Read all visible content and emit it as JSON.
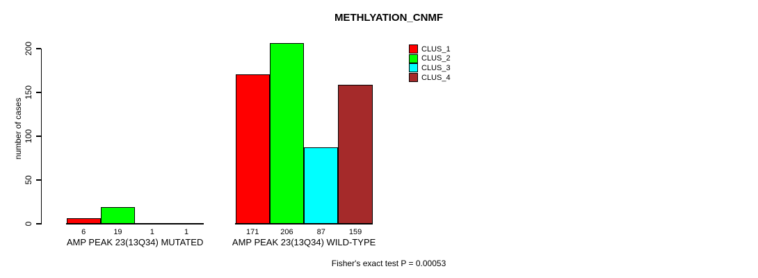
{
  "chart_data": {
    "type": "bar",
    "title": "METHLYATION_CNMF",
    "ylabel": "number of cases",
    "xlabel": "",
    "ylim": [
      0,
      200
    ],
    "yticks": [
      0,
      50,
      100,
      150,
      200
    ],
    "grid": false,
    "legend_position": "top-right-outside",
    "categories": [
      "AMP PEAK 23(13Q34) MUTATED",
      "AMP PEAK 23(13Q34) WILD-TYPE"
    ],
    "series": [
      {
        "name": "CLUS_1",
        "color": "#ff0000",
        "values": [
          6,
          171
        ]
      },
      {
        "name": "CLUS_2",
        "color": "#00ff00",
        "values": [
          19,
          206
        ]
      },
      {
        "name": "CLUS_3",
        "color": "#00ffff",
        "values": [
          1,
          87
        ]
      },
      {
        "name": "CLUS_4",
        "color": "#a52a2a",
        "values": [
          1,
          159
        ]
      }
    ],
    "annotation": "Fisher's exact test P = 0.00053"
  }
}
